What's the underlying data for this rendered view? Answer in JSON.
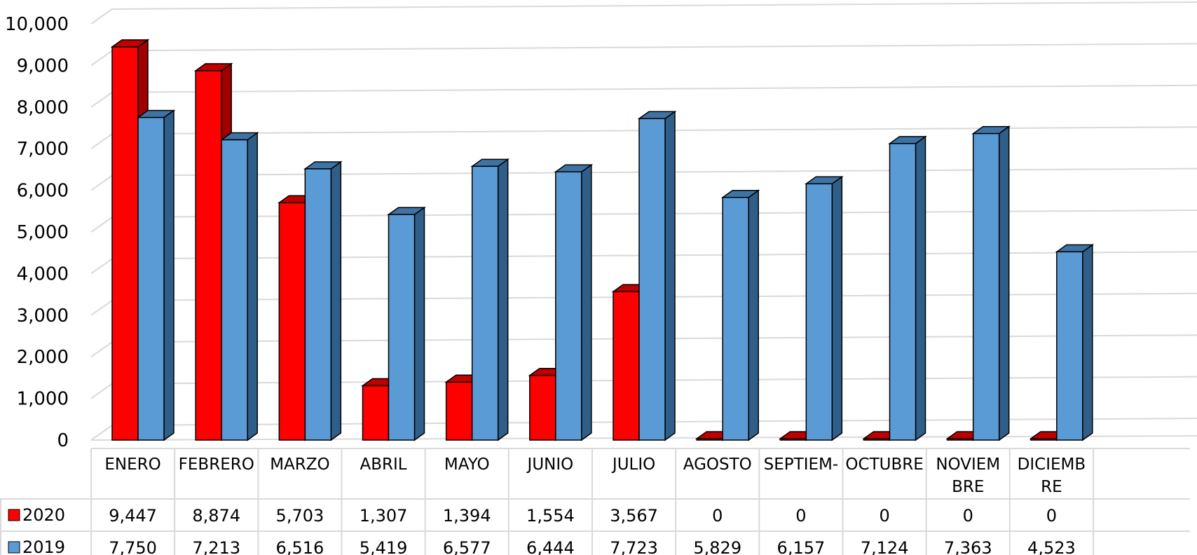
{
  "chart_data": {
    "type": "bar",
    "style": "3d-clustered-column-with-data-table",
    "categories": [
      [
        "ENERO"
      ],
      [
        "FEBRERO"
      ],
      [
        "MARZO"
      ],
      [
        "ABRIL"
      ],
      [
        "MAYO"
      ],
      [
        "JUNIO"
      ],
      [
        "JULIO"
      ],
      [
        "AGOSTO"
      ],
      [
        "SEPTIEM-"
      ],
      [
        "OCTUBRE"
      ],
      [
        "NOVIEM",
        "BRE"
      ],
      [
        "DICIEMB",
        "RE"
      ]
    ],
    "series": [
      {
        "name": "2020",
        "color": "#ff0000",
        "side_color": "#a00000",
        "top_color": "#c00000",
        "values": [
          9447,
          8874,
          5703,
          1307,
          1394,
          1554,
          3567,
          0,
          0,
          0,
          0,
          0
        ],
        "labels": [
          "9,447",
          "8,874",
          "5,703",
          "1,307",
          "1,394",
          "1,554",
          "3,567",
          "0",
          "0",
          "0",
          "0",
          "0"
        ]
      },
      {
        "name": "2019",
        "color": "#5b9bd5",
        "side_color": "#2f5f88",
        "top_color": "#3e73a6",
        "values": [
          7750,
          7213,
          6516,
          5419,
          6577,
          6444,
          7723,
          5829,
          6157,
          7124,
          7363,
          4523
        ],
        "labels": [
          "7,750",
          "7,213",
          "6,516",
          "5,419",
          "6,577",
          "6,444",
          "7,723",
          "5,829",
          "6,157",
          "7,124",
          "7,363",
          "4,523"
        ]
      }
    ],
    "y_ticks": [
      "0",
      "1,000",
      "2,000",
      "3,000",
      "4,000",
      "5,000",
      "6,000",
      "7,000",
      "8,000",
      "9,000",
      "10,000"
    ],
    "ylim": [
      0,
      10000
    ],
    "grid": true,
    "legend": "data-table-left"
  }
}
